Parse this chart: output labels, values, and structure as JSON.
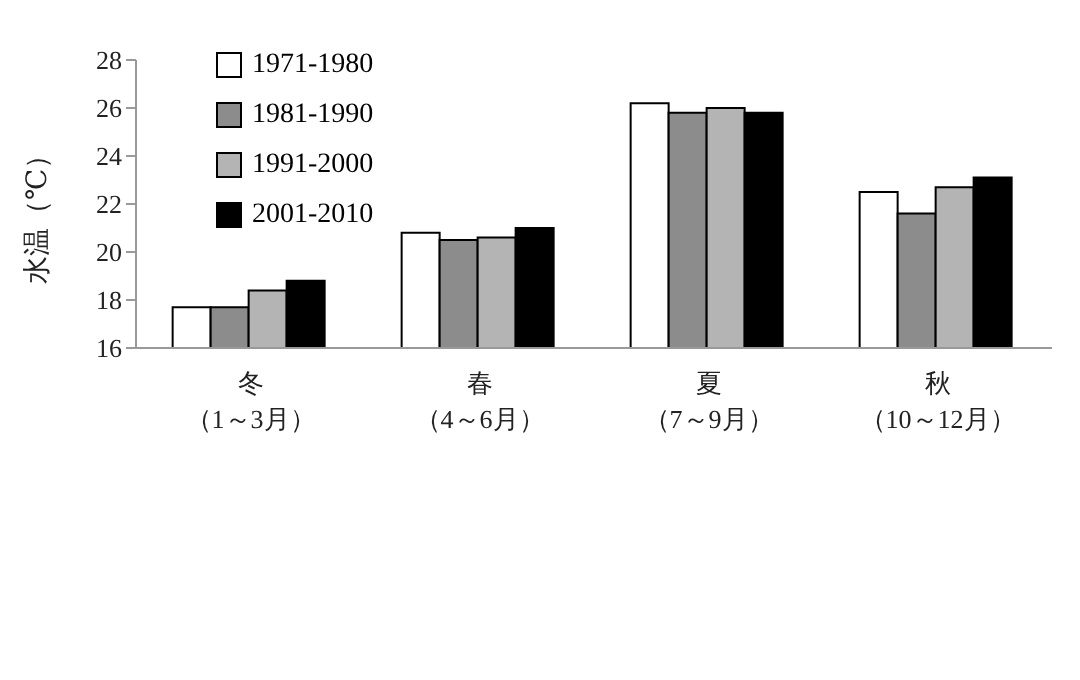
{
  "chart_data": {
    "type": "bar",
    "ylabel": "水温（℃）",
    "categories": [
      "冬（1～3月）",
      "春（4～6月）",
      "夏（7～9月）",
      "秋（10～12月）"
    ],
    "series": [
      {
        "name": "1971-1980",
        "color": "#ffffff",
        "values": [
          17.7,
          20.8,
          26.2,
          22.5
        ]
      },
      {
        "name": "1981-1990",
        "color": "#8c8c8c",
        "values": [
          17.7,
          20.5,
          25.8,
          21.6
        ]
      },
      {
        "name": "1991-2000",
        "color": "#b4b4b4",
        "values": [
          18.4,
          20.6,
          26.0,
          22.7
        ]
      },
      {
        "name": "2001-2010",
        "color": "#000000",
        "values": [
          18.8,
          21.0,
          25.8,
          23.1
        ]
      }
    ],
    "ylim": [
      16,
      28
    ],
    "yticks": [
      16,
      18,
      20,
      22,
      24,
      26,
      28
    ],
    "legend": "top left"
  }
}
